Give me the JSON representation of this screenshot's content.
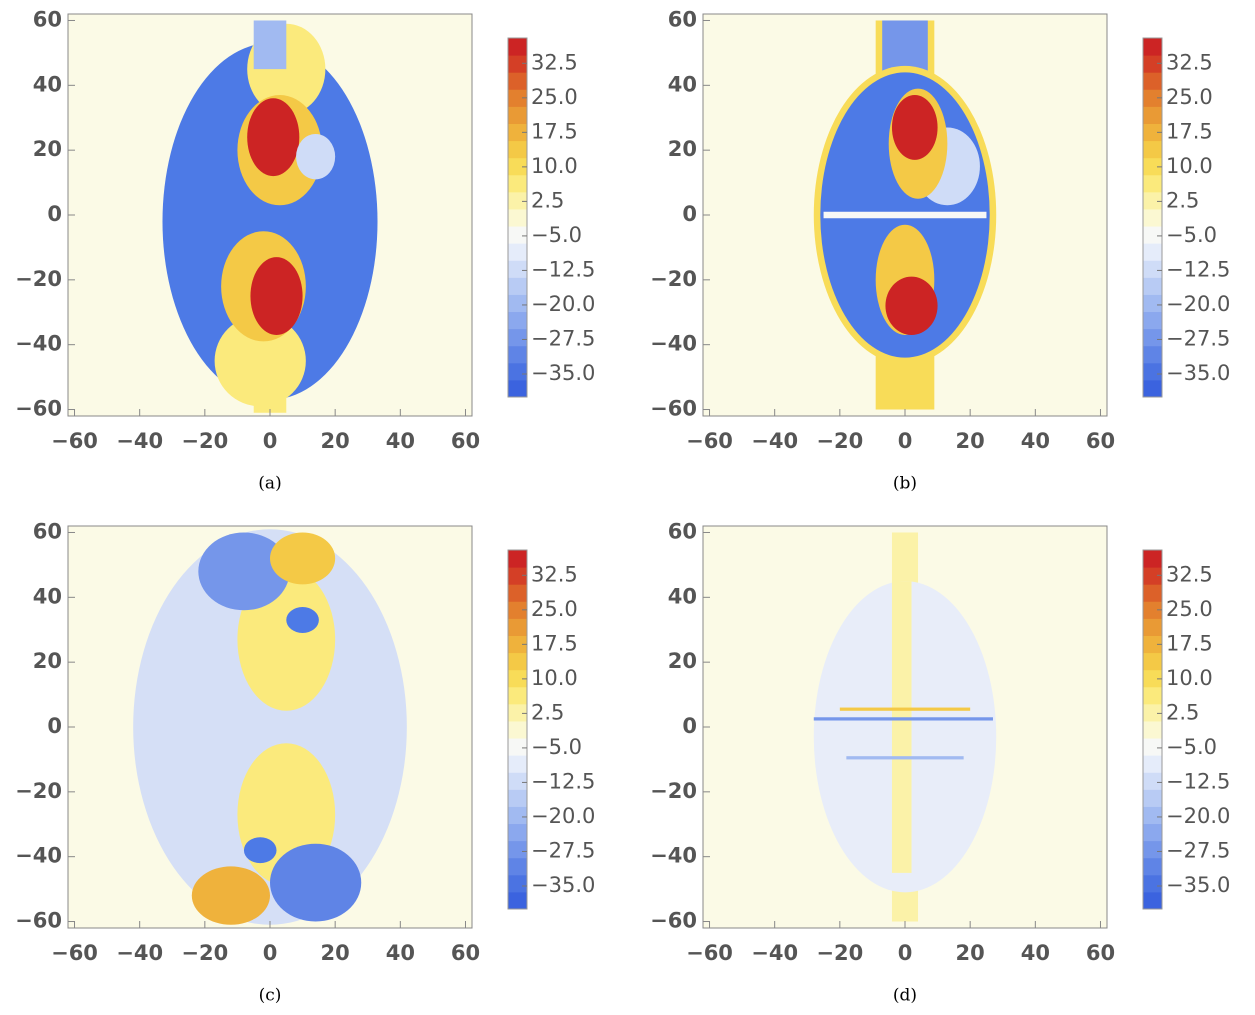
{
  "chart_data": [
    {
      "type": "heatmap",
      "caption": "(a)",
      "xlim": [
        -62,
        62
      ],
      "ylim": [
        -62,
        62
      ],
      "xticks": [
        {
          "value": -60,
          "label": "−60"
        },
        {
          "value": -40,
          "label": "−40"
        },
        {
          "value": -20,
          "label": "−20"
        },
        0,
        20,
        40,
        60
      ],
      "yticks": [
        {
          "value": -60,
          "label": "−60"
        },
        {
          "value": -40,
          "label": "−40"
        },
        {
          "value": -20,
          "label": "−20"
        },
        0,
        20,
        40,
        60
      ],
      "clim": [
        -40,
        38
      ],
      "cticks": [
        {
          "value": 32.5,
          "label": "32.5"
        },
        {
          "value": 25,
          "label": "25.0"
        },
        {
          "value": 17.5,
          "label": "17.5"
        },
        {
          "value": 10,
          "label": "10.0"
        },
        {
          "value": 2.5,
          "label": "2.5"
        },
        {
          "value": -5,
          "label": "−5.0"
        },
        {
          "value": -12.5,
          "label": "−12.5"
        },
        {
          "value": -20,
          "label": "−20.0"
        },
        {
          "value": -27.5,
          "label": "−27.5"
        },
        {
          "value": -35,
          "label": "−35.0"
        }
      ],
      "colors": [
        "#3b63df",
        "#4b73e2",
        "#5f84e6",
        "#7596ea",
        "#8ba8ee",
        "#a1baf1",
        "#b8cbf4",
        "#cfdcf7",
        "#e5ecfa",
        "#f7f8f6",
        "#fbf8d2",
        "#fbf2a8",
        "#fbea7c",
        "#f8dc58",
        "#f4c946",
        "#efb23c",
        "#e99a35",
        "#e3802e",
        "#dc6129",
        "#d43f26",
        "#cc2424"
      ]
    },
    {
      "type": "heatmap",
      "caption": "(b)",
      "xlim": [
        -62,
        62
      ],
      "ylim": [
        -62,
        62
      ],
      "xticks": [
        {
          "value": -60,
          "label": "−60"
        },
        {
          "value": -40,
          "label": "−40"
        },
        {
          "value": -20,
          "label": "−20"
        },
        0,
        20,
        40,
        60
      ],
      "yticks": [
        {
          "value": -60,
          "label": "−60"
        },
        {
          "value": -40,
          "label": "−40"
        },
        {
          "value": -20,
          "label": "−20"
        },
        0,
        20,
        40,
        60
      ],
      "clim": [
        -40,
        38
      ],
      "cticks": [
        {
          "value": 32.5,
          "label": "32.5"
        },
        {
          "value": 25,
          "label": "25.0"
        },
        {
          "value": 17.5,
          "label": "17.5"
        },
        {
          "value": 10,
          "label": "10.0"
        },
        {
          "value": 2.5,
          "label": "2.5"
        },
        {
          "value": -5,
          "label": "−5.0"
        },
        {
          "value": -12.5,
          "label": "−12.5"
        },
        {
          "value": -20,
          "label": "−20.0"
        },
        {
          "value": -27.5,
          "label": "−27.5"
        },
        {
          "value": -35,
          "label": "−35.0"
        }
      ],
      "colors": [
        "#3b63df",
        "#4b73e2",
        "#5f84e6",
        "#7596ea",
        "#8ba8ee",
        "#a1baf1",
        "#b8cbf4",
        "#cfdcf7",
        "#e5ecfa",
        "#f7f8f6",
        "#fbf8d2",
        "#fbf2a8",
        "#fbea7c",
        "#f8dc58",
        "#f4c946",
        "#efb23c",
        "#e99a35",
        "#e3802e",
        "#dc6129",
        "#d43f26",
        "#cc2424"
      ]
    },
    {
      "type": "heatmap",
      "caption": "(c)",
      "xlim": [
        -62,
        62
      ],
      "ylim": [
        -62,
        62
      ],
      "xticks": [
        {
          "value": -60,
          "label": "−60"
        },
        {
          "value": -40,
          "label": "−40"
        },
        {
          "value": -20,
          "label": "−20"
        },
        0,
        20,
        40,
        60
      ],
      "yticks": [
        {
          "value": -60,
          "label": "−60"
        },
        {
          "value": -40,
          "label": "−40"
        },
        {
          "value": -20,
          "label": "−20"
        },
        0,
        20,
        40,
        60
      ],
      "clim": [
        -40,
        38
      ],
      "cticks": [
        {
          "value": 32.5,
          "label": "32.5"
        },
        {
          "value": 25,
          "label": "25.0"
        },
        {
          "value": 17.5,
          "label": "17.5"
        },
        {
          "value": 10,
          "label": "10.0"
        },
        {
          "value": 2.5,
          "label": "2.5"
        },
        {
          "value": -5,
          "label": "−5.0"
        },
        {
          "value": -12.5,
          "label": "−12.5"
        },
        {
          "value": -20,
          "label": "−20.0"
        },
        {
          "value": -27.5,
          "label": "−27.5"
        },
        {
          "value": -35,
          "label": "−35.0"
        }
      ],
      "colors": [
        "#3b63df",
        "#4b73e2",
        "#5f84e6",
        "#7596ea",
        "#8ba8ee",
        "#a1baf1",
        "#b8cbf4",
        "#cfdcf7",
        "#e5ecfa",
        "#f7f8f6",
        "#fbf8d2",
        "#fbf2a8",
        "#fbea7c",
        "#f8dc58",
        "#f4c946",
        "#efb23c",
        "#e99a35",
        "#e3802e",
        "#dc6129",
        "#d43f26",
        "#cc2424"
      ]
    },
    {
      "type": "heatmap",
      "caption": "(d)",
      "xlim": [
        -62,
        62
      ],
      "ylim": [
        -62,
        62
      ],
      "xticks": [
        {
          "value": -60,
          "label": "−60"
        },
        {
          "value": -40,
          "label": "−40"
        },
        {
          "value": -20,
          "label": "−20"
        },
        0,
        20,
        40,
        60
      ],
      "yticks": [
        {
          "value": -60,
          "label": "−60"
        },
        {
          "value": -40,
          "label": "−40"
        },
        {
          "value": -20,
          "label": "−20"
        },
        0,
        20,
        40,
        60
      ],
      "clim": [
        -40,
        38
      ],
      "cticks": [
        {
          "value": 32.5,
          "label": "32.5"
        },
        {
          "value": 25,
          "label": "25.0"
        },
        {
          "value": 17.5,
          "label": "17.5"
        },
        {
          "value": 10,
          "label": "10.0"
        },
        {
          "value": 2.5,
          "label": "2.5"
        },
        {
          "value": -5,
          "label": "−5.0"
        },
        {
          "value": -12.5,
          "label": "−12.5"
        },
        {
          "value": -20,
          "label": "−20.0"
        },
        {
          "value": -27.5,
          "label": "−27.5"
        },
        {
          "value": -35,
          "label": "−35.0"
        }
      ],
      "colors": [
        "#3b63df",
        "#4b73e2",
        "#5f84e6",
        "#7596ea",
        "#8ba8ee",
        "#a1baf1",
        "#b8cbf4",
        "#cfdcf7",
        "#e5ecfa",
        "#f7f8f6",
        "#fbf8d2",
        "#fbf2a8",
        "#fbea7c",
        "#f8dc58",
        "#f4c946",
        "#efb23c",
        "#e99a35",
        "#e3802e",
        "#dc6129",
        "#d43f26",
        "#cc2424"
      ]
    }
  ]
}
